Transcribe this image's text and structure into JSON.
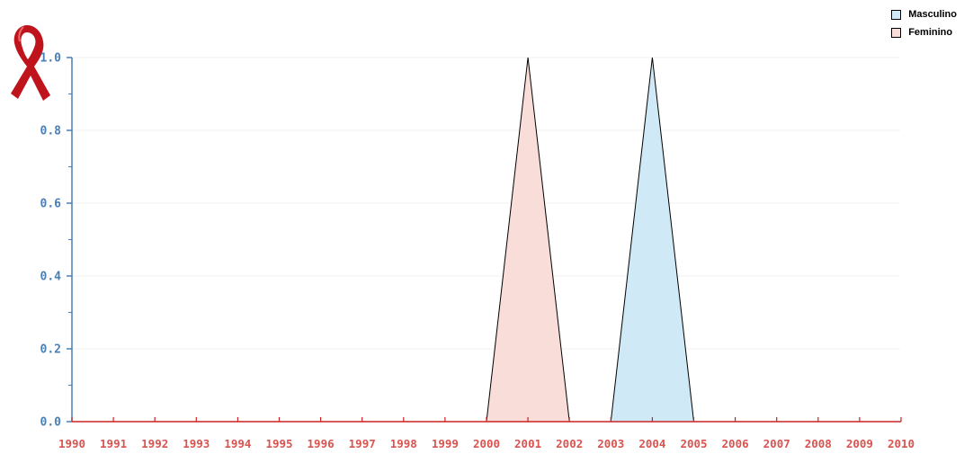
{
  "colors": {
    "y_axis": "#4a7fb5",
    "x_axis": "#cc2222",
    "x_tick_label": "#d9534f",
    "grid": "#f2f2f2",
    "outline": "#000000"
  },
  "legend": {
    "placement": "top-right",
    "items": [
      {
        "label": "Masculino",
        "color": "#d0e9f6"
      },
      {
        "label": "Feminino",
        "color": "#f9ddd9"
      }
    ]
  },
  "chart_data": {
    "type": "area",
    "title": "",
    "xlabel": "",
    "ylabel": "",
    "x": [
      "1990",
      "1991",
      "1992",
      "1993",
      "1994",
      "1995",
      "1996",
      "1997",
      "1998",
      "1999",
      "2000",
      "2001",
      "2002",
      "2003",
      "2004",
      "2005",
      "2006",
      "2007",
      "2008",
      "2009",
      "2010"
    ],
    "ylim": [
      0,
      1.0
    ],
    "yticks": [
      "0.0",
      "0.2",
      "0.4",
      "0.6",
      "0.8",
      "1.0"
    ],
    "grid": true,
    "series": [
      {
        "name": "Masculino",
        "color": "#d0e9f6",
        "values": [
          0,
          0,
          0,
          0,
          0,
          0,
          0,
          0,
          0,
          0,
          0,
          0,
          0,
          0,
          1,
          0,
          0,
          0,
          0,
          0,
          0
        ]
      },
      {
        "name": "Feminino",
        "color": "#f9ddd9",
        "values": [
          0,
          0,
          0,
          0,
          0,
          0,
          0,
          0,
          0,
          0,
          0,
          1,
          0,
          0,
          0,
          0,
          0,
          0,
          0,
          0,
          0
        ]
      }
    ]
  }
}
